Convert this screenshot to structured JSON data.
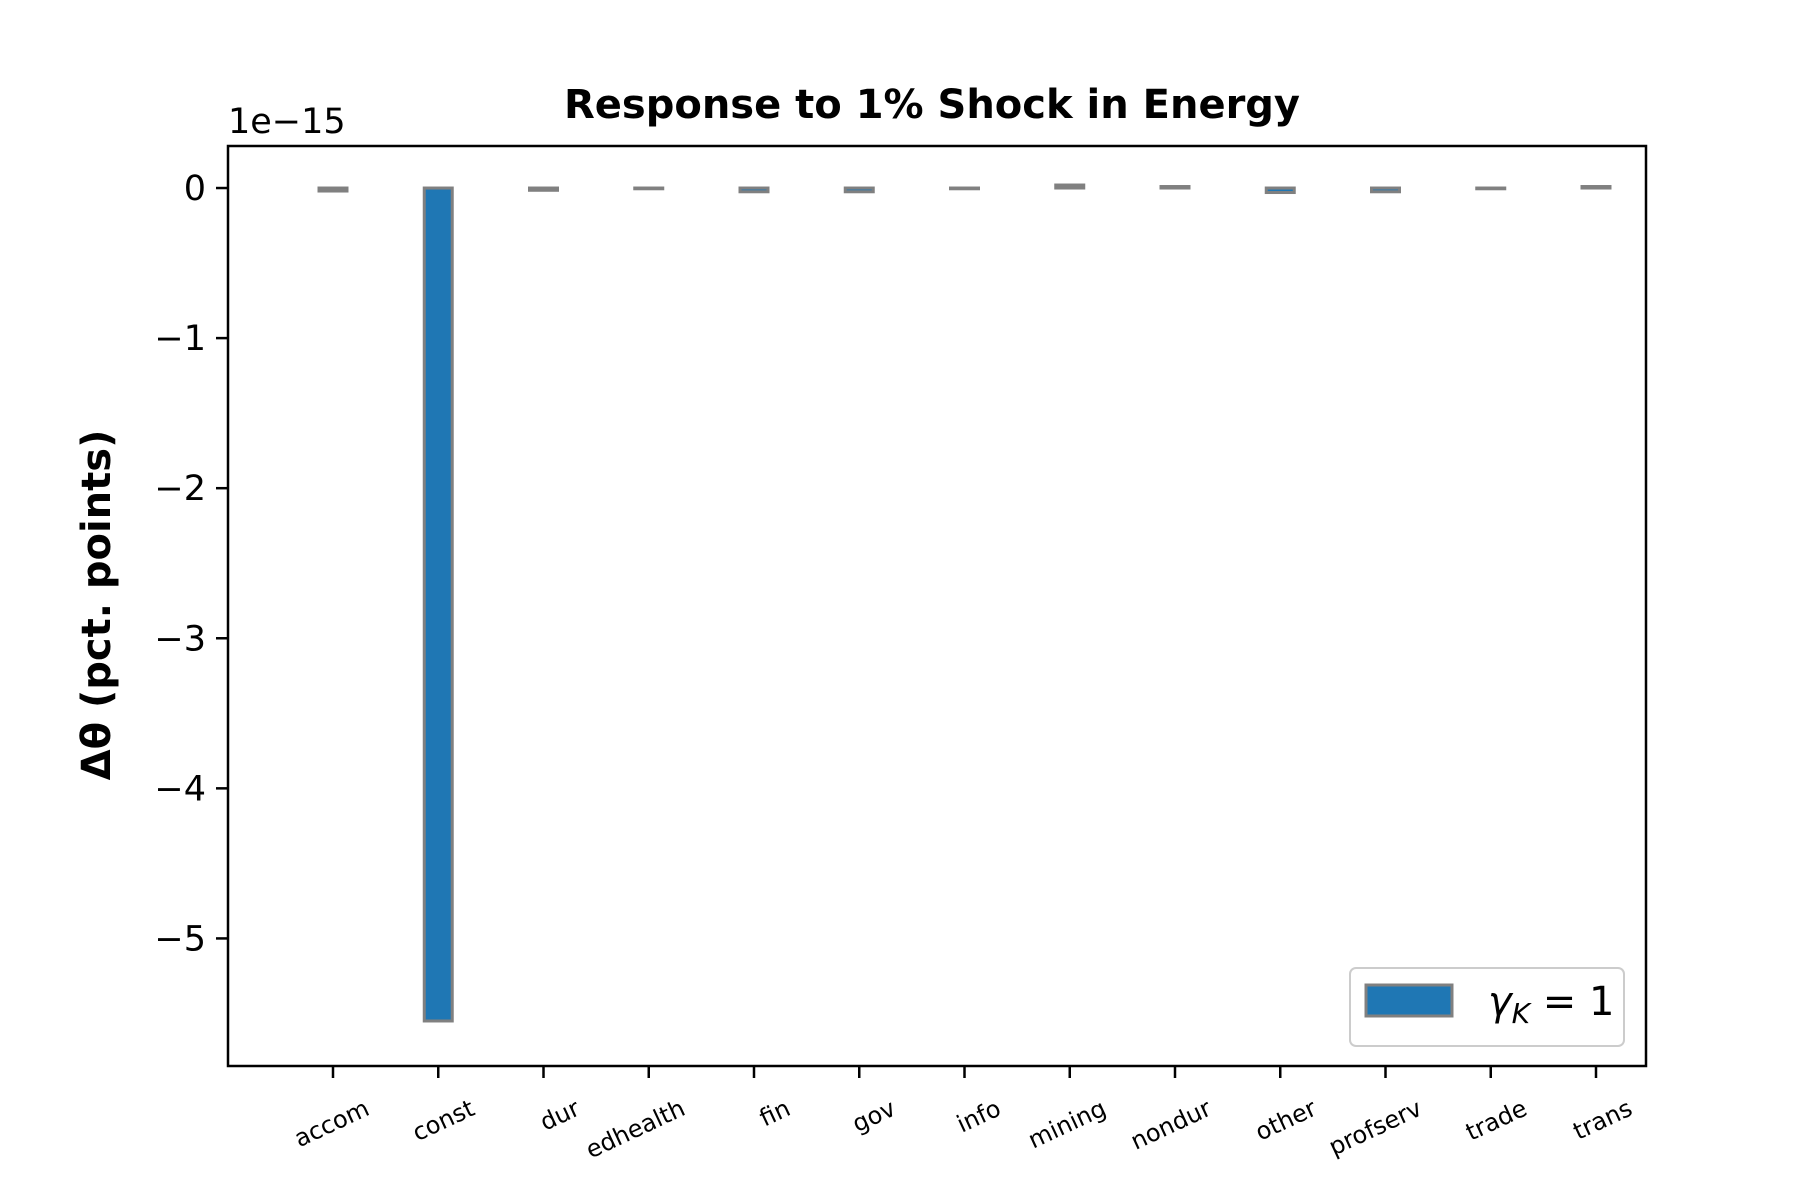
{
  "chart_data": {
    "type": "bar",
    "title": "Response to 1% Shock in Energy",
    "ylabel": "Δθ  (pct. points)",
    "xlabel": "",
    "exponent_label": "1e−15",
    "y_unit_multiplier": 1e-15,
    "ylim": [
      -5.85,
      0.28
    ],
    "yticks": [
      0,
      -1,
      -2,
      -3,
      -4,
      -5
    ],
    "ytick_labels": [
      "0",
      "−1",
      "−2",
      "−3",
      "−4",
      "−5"
    ],
    "categories": [
      "accom",
      "const",
      "dur",
      "edhealth",
      "fin",
      "gov",
      "info",
      "mining",
      "nondur",
      "other",
      "profserv",
      "trade",
      "trans"
    ],
    "series": [
      {
        "name": "γK = 1",
        "legend_label": "γ",
        "legend_subscript": "K",
        "legend_suffix": " = 1",
        "color": "#1f77b4",
        "edgecolor": "#808080",
        "values": [
          -0.02,
          -5.55,
          -0.015,
          -0.005,
          -0.025,
          -0.025,
          -0.005,
          0.02,
          0.01,
          -0.03,
          -0.025,
          -0.005,
          0.01
        ]
      }
    ],
    "grid": false,
    "legend_position": "lower-right"
  }
}
